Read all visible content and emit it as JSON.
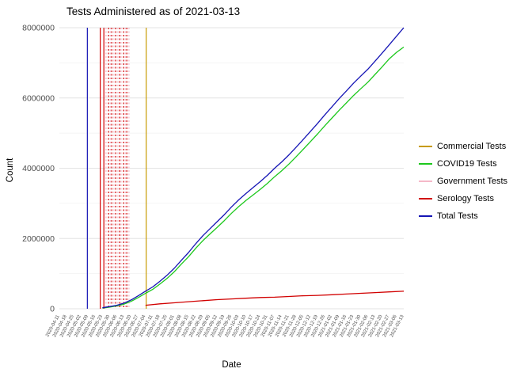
{
  "chart_data": {
    "type": "line",
    "title": "Tests Administered as of 2021-03-13",
    "xlabel": "Date",
    "ylabel": "Count",
    "ylim": [
      0,
      8000000
    ],
    "yticks": [
      0,
      2000000,
      4000000,
      6000000,
      8000000
    ],
    "yticks_minor": [
      1000000,
      3000000,
      5000000,
      7000000
    ],
    "grid": true,
    "legend_position": "right",
    "x": [
      "2020-04-11",
      "2020-04-18",
      "2020-04-25",
      "2020-05-02",
      "2020-05-09",
      "2020-05-16",
      "2020-05-23",
      "2020-05-30",
      "2020-06-06",
      "2020-06-13",
      "2020-06-20",
      "2020-06-27",
      "2020-07-04",
      "2020-07-11",
      "2020-07-18",
      "2020-07-25",
      "2020-08-01",
      "2020-08-08",
      "2020-08-15",
      "2020-08-22",
      "2020-08-29",
      "2020-09-05",
      "2020-09-12",
      "2020-09-19",
      "2020-09-26",
      "2020-10-03",
      "2020-10-10",
      "2020-10-17",
      "2020-10-24",
      "2020-10-31",
      "2020-11-07",
      "2020-11-14",
      "2020-11-21",
      "2020-11-28",
      "2020-12-05",
      "2020-12-12",
      "2020-12-19",
      "2020-12-26",
      "2021-01-02",
      "2021-01-09",
      "2021-01-16",
      "2021-01-23",
      "2021-01-30",
      "2021-02-06",
      "2021-02-13",
      "2021-02-20",
      "2021-02-27",
      "2021-03-06",
      "2021-03-13"
    ],
    "series": [
      {
        "name": "Commercial Tests",
        "color": "#c79a00",
        "points": []
      },
      {
        "name": "COVID19 Tests",
        "color": "#1dc81d",
        "points": [
          [
            6,
            20000
          ],
          [
            7,
            45000
          ],
          [
            8,
            80000
          ],
          [
            9,
            130000
          ],
          [
            10,
            210000
          ],
          [
            11,
            320000
          ],
          [
            12,
            440000
          ],
          [
            13,
            550000
          ],
          [
            14,
            700000
          ],
          [
            15,
            860000
          ],
          [
            16,
            1050000
          ],
          [
            17,
            1270000
          ],
          [
            18,
            1480000
          ],
          [
            19,
            1720000
          ],
          [
            20,
            1940000
          ],
          [
            21,
            2130000
          ],
          [
            22,
            2320000
          ],
          [
            23,
            2510000
          ],
          [
            24,
            2720000
          ],
          [
            25,
            2910000
          ],
          [
            26,
            3080000
          ],
          [
            27,
            3240000
          ],
          [
            28,
            3400000
          ],
          [
            29,
            3570000
          ],
          [
            30,
            3760000
          ],
          [
            31,
            3930000
          ],
          [
            32,
            4120000
          ],
          [
            33,
            4330000
          ],
          [
            34,
            4540000
          ],
          [
            35,
            4760000
          ],
          [
            36,
            4980000
          ],
          [
            37,
            5210000
          ],
          [
            38,
            5430000
          ],
          [
            39,
            5650000
          ],
          [
            40,
            5860000
          ],
          [
            41,
            6070000
          ],
          [
            42,
            6260000
          ],
          [
            43,
            6450000
          ],
          [
            44,
            6670000
          ],
          [
            45,
            6890000
          ],
          [
            46,
            7120000
          ],
          [
            47,
            7300000
          ],
          [
            48,
            7450000
          ]
        ]
      },
      {
        "name": "Government Tests",
        "color": "#f5b8c8",
        "points": []
      },
      {
        "name": "Serology Tests",
        "color": "#d10000",
        "points": [
          [
            12,
            100000
          ],
          [
            14,
            140000
          ],
          [
            16,
            170000
          ],
          [
            18,
            200000
          ],
          [
            20,
            230000
          ],
          [
            22,
            260000
          ],
          [
            24,
            280000
          ],
          [
            26,
            300000
          ],
          [
            28,
            320000
          ],
          [
            30,
            330000
          ],
          [
            32,
            350000
          ],
          [
            34,
            370000
          ],
          [
            36,
            380000
          ],
          [
            38,
            400000
          ],
          [
            40,
            420000
          ],
          [
            42,
            440000
          ],
          [
            44,
            460000
          ],
          [
            46,
            480000
          ],
          [
            48,
            500000
          ]
        ]
      },
      {
        "name": "Total Tests",
        "color": "#1515b5",
        "points": [
          [
            6,
            30000
          ],
          [
            7,
            60000
          ],
          [
            8,
            100000
          ],
          [
            9,
            160000
          ],
          [
            10,
            250000
          ],
          [
            11,
            370000
          ],
          [
            12,
            500000
          ],
          [
            13,
            620000
          ],
          [
            14,
            780000
          ],
          [
            15,
            950000
          ],
          [
            16,
            1150000
          ],
          [
            17,
            1380000
          ],
          [
            18,
            1600000
          ],
          [
            19,
            1850000
          ],
          [
            20,
            2080000
          ],
          [
            21,
            2280000
          ],
          [
            22,
            2480000
          ],
          [
            23,
            2680000
          ],
          [
            24,
            2900000
          ],
          [
            25,
            3100000
          ],
          [
            26,
            3280000
          ],
          [
            27,
            3450000
          ],
          [
            28,
            3620000
          ],
          [
            29,
            3800000
          ],
          [
            30,
            4000000
          ],
          [
            31,
            4180000
          ],
          [
            32,
            4380000
          ],
          [
            33,
            4600000
          ],
          [
            34,
            4820000
          ],
          [
            35,
            5050000
          ],
          [
            36,
            5280000
          ],
          [
            37,
            5520000
          ],
          [
            38,
            5750000
          ],
          [
            39,
            5980000
          ],
          [
            40,
            6200000
          ],
          [
            41,
            6420000
          ],
          [
            42,
            6620000
          ],
          [
            43,
            6820000
          ],
          [
            44,
            7050000
          ],
          [
            45,
            7280000
          ],
          [
            46,
            7520000
          ],
          [
            47,
            7760000
          ],
          [
            48,
            8000000
          ]
        ]
      }
    ],
    "vlines": [
      {
        "x": 3.9,
        "color": "#1515b5",
        "dash": "solid"
      },
      {
        "x": 5.7,
        "color": "#d10000",
        "dash": "solid"
      },
      {
        "x": 6.2,
        "color": "#d10000",
        "dash": "solid"
      },
      {
        "x": 6.5,
        "color": "#f5b8c8",
        "dash": "dotted"
      },
      {
        "x": 6.85,
        "color": "#d10000",
        "dash": "dotted"
      },
      {
        "x": 7.1,
        "color": "#f5b8c8",
        "dash": "dotted"
      },
      {
        "x": 7.3,
        "color": "#d10000",
        "dash": "dotted"
      },
      {
        "x": 7.6,
        "color": "#f5b8c8",
        "dash": "dotted"
      },
      {
        "x": 7.85,
        "color": "#d10000",
        "dash": "dotted"
      },
      {
        "x": 8.15,
        "color": "#f5b8c8",
        "dash": "dotted"
      },
      {
        "x": 8.4,
        "color": "#d10000",
        "dash": "dotted"
      },
      {
        "x": 8.6,
        "color": "#f5b8c8",
        "dash": "dotted"
      },
      {
        "x": 8.95,
        "color": "#d10000",
        "dash": "dotted"
      },
      {
        "x": 9.2,
        "color": "#f5b8c8",
        "dash": "dotted"
      },
      {
        "x": 9.4,
        "color": "#d10000",
        "dash": "dotted"
      },
      {
        "x": 9.7,
        "color": "#f5b8c8",
        "dash": "dotted"
      },
      {
        "x": 12.1,
        "color": "#c79a00",
        "dash": "solid"
      }
    ]
  }
}
